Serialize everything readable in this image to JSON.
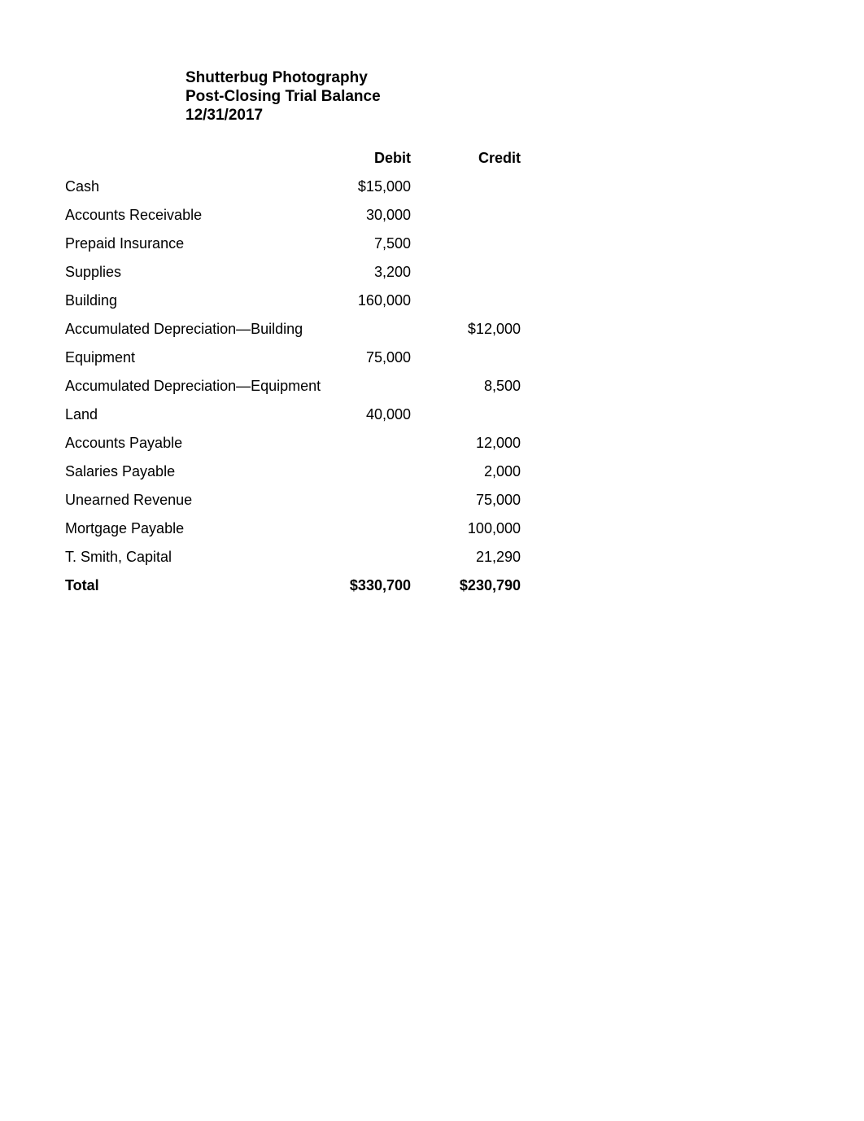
{
  "header": {
    "company": "Shutterbug Photography",
    "title": "Post-Closing Trial Balance",
    "date": "12/31/2017"
  },
  "columns": {
    "account": "",
    "debit": "Debit",
    "credit": "Credit"
  },
  "rows": [
    {
      "account": "Cash",
      "debit": "$15,000",
      "credit": ""
    },
    {
      "account": "Accounts Receivable",
      "debit": "30,000",
      "credit": ""
    },
    {
      "account": "Prepaid Insurance",
      "debit": "7,500",
      "credit": ""
    },
    {
      "account": "Supplies",
      "debit": "3,200",
      "credit": ""
    },
    {
      "account": "Building",
      "debit": "160,000",
      "credit": ""
    },
    {
      "account": "Accumulated Depreciation—Building",
      "debit": "",
      "credit": "$12,000"
    },
    {
      "account": "Equipment",
      "debit": "75,000",
      "credit": ""
    },
    {
      "account": "Accumulated Depreciation—Equipment",
      "debit": "",
      "credit": "8,500"
    },
    {
      "account": "Land",
      "debit": "40,000",
      "credit": ""
    },
    {
      "account": "Accounts Payable",
      "debit": "",
      "credit": "12,000"
    },
    {
      "account": "Salaries Payable",
      "debit": "",
      "credit": "2,000"
    },
    {
      "account": "Unearned Revenue",
      "debit": "",
      "credit": "75,000"
    },
    {
      "account": "Mortgage Payable",
      "debit": "",
      "credit": "100,000"
    },
    {
      "account": "T. Smith, Capital",
      "debit": "",
      "credit": "21,290"
    }
  ],
  "totals": {
    "label": "Total",
    "debit": "$330,700",
    "credit": "$230,790"
  },
  "style": {
    "font_size_header": 19,
    "font_size_body": 18,
    "background_color": "#ffffff",
    "text_color": "#000000"
  }
}
